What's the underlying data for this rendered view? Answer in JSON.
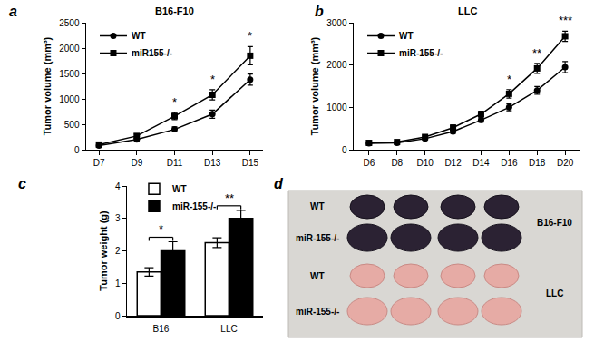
{
  "chart_data": [
    {
      "type": "line",
      "panel_label": "a",
      "title": "B16-F10",
      "y_label": "Tumor volume (mm³)",
      "categories": [
        "D7",
        "D9",
        "D11",
        "D13",
        "D15"
      ],
      "series": [
        {
          "name": "WT",
          "color": "#000000",
          "marker": "circle",
          "values": [
            80,
            200,
            400,
            700,
            1380
          ],
          "errors": [
            30,
            40,
            50,
            80,
            110
          ]
        },
        {
          "name": "miR155-/-",
          "color": "#000000",
          "marker": "square",
          "values": [
            100,
            270,
            660,
            1080,
            1850
          ],
          "errors": [
            30,
            40,
            70,
            100,
            180
          ]
        }
      ],
      "ylim": [
        0,
        2500
      ],
      "yticks": [
        0,
        500,
        1000,
        1500,
        2000,
        2500
      ],
      "grid": false,
      "legend": "upper left",
      "annotations": [
        {
          "x": "D11",
          "text": "*"
        },
        {
          "x": "D13",
          "text": "*"
        },
        {
          "x": "D15",
          "text": "*"
        }
      ]
    },
    {
      "type": "line",
      "panel_label": "b",
      "title": "LLC",
      "y_label": "Tumor volume (mm³)",
      "categories": [
        "D6",
        "D8",
        "D10",
        "D12",
        "D14",
        "D16",
        "D18",
        "D20"
      ],
      "series": [
        {
          "name": "WT",
          "color": "#000000",
          "marker": "circle",
          "values": [
            150,
            160,
            260,
            430,
            700,
            1000,
            1400,
            1950
          ],
          "errors": [
            20,
            20,
            30,
            40,
            50,
            80,
            90,
            130
          ]
        },
        {
          "name": "miR-155-/-",
          "color": "#000000",
          "marker": "square",
          "values": [
            160,
            180,
            300,
            520,
            840,
            1320,
            1920,
            2680
          ],
          "errors": [
            20,
            20,
            40,
            60,
            70,
            100,
            120,
            120
          ]
        }
      ],
      "ylim": [
        0,
        3000
      ],
      "yticks": [
        0,
        1000,
        2000,
        3000
      ],
      "grid": false,
      "legend": "upper left",
      "annotations": [
        {
          "x": "D16",
          "text": "*"
        },
        {
          "x": "D18",
          "text": "**"
        },
        {
          "x": "D20",
          "text": "***"
        }
      ]
    },
    {
      "type": "bar",
      "panel_label": "c",
      "y_label": "Tumor weight (g)",
      "categories": [
        "B16",
        "LLC"
      ],
      "series": [
        {
          "name": "WT",
          "color": "#ffffff",
          "values": [
            1.35,
            2.25
          ],
          "errors": [
            0.13,
            0.15
          ]
        },
        {
          "name": "miR-155-/-",
          "color": "#000000",
          "values": [
            2.0,
            3.0
          ],
          "errors": [
            0.28,
            0.25
          ]
        }
      ],
      "ylim": [
        0,
        4
      ],
      "yticks": [
        0,
        1,
        2,
        3,
        4
      ],
      "grid": false,
      "legend": "upper left",
      "annotations": [
        {
          "x": "B16",
          "text": "*"
        },
        {
          "x": "LLC",
          "text": "**"
        }
      ]
    }
  ],
  "photo_panel": {
    "panel_label": "d",
    "groups": [
      {
        "name": "B16-F10",
        "rows": [
          "WT",
          "miR-155-/-"
        ]
      },
      {
        "name": "LLC",
        "rows": [
          "WT",
          "miR-155-/-"
        ]
      }
    ]
  }
}
